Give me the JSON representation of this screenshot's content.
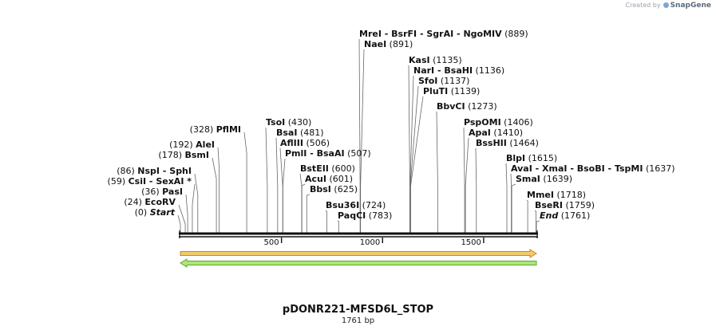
{
  "credit": {
    "prefix": "Created by",
    "brand": "SnapGene"
  },
  "plasmid": {
    "name": "pDONR221-MFSD6L_STOP",
    "length_label": "1761 bp",
    "length": 1761
  },
  "ticks": [
    {
      "value": 500,
      "label": "500"
    },
    {
      "value": 1000,
      "label": "1000"
    },
    {
      "value": 1500,
      "label": "1500"
    }
  ],
  "features": [
    {
      "name": "feature-orange",
      "strand": "forward",
      "start": 1,
      "end": 1761,
      "fill": "#f3c96b",
      "stroke": "#c8872a"
    },
    {
      "name": "feature-green",
      "strand": "reverse",
      "start": 1,
      "end": 1761,
      "fill": "#aee67a",
      "stroke": "#5ea82b"
    }
  ],
  "sites_left": [
    {
      "pos_label": "(0)",
      "pos": 0,
      "names": [
        "Start"
      ],
      "italic": true
    },
    {
      "pos_label": "(24)",
      "pos": 24,
      "names": [
        "EcoRV"
      ]
    },
    {
      "pos_label": "(36)",
      "pos": 36,
      "names": [
        "PasI"
      ]
    },
    {
      "pos_label": "(59)",
      "pos": 59,
      "names": [
        "CsiI",
        "SexAI *"
      ]
    },
    {
      "pos_label": "(86)",
      "pos": 86,
      "names": [
        "NspI",
        "SphI"
      ]
    },
    {
      "pos_label": "(178)",
      "pos": 178,
      "names": [
        "BsmI"
      ]
    },
    {
      "pos_label": "(192)",
      "pos": 192,
      "names": [
        "AleI"
      ]
    },
    {
      "pos_label": "(328)",
      "pos": 328,
      "names": [
        "PflMI"
      ]
    }
  ],
  "sites_right": [
    {
      "names": [
        "TsoI"
      ],
      "pos_label": "(430)",
      "pos": 430
    },
    {
      "names": [
        "BsaI"
      ],
      "pos_label": "(481)",
      "pos": 481
    },
    {
      "names": [
        "AflIII"
      ],
      "pos_label": "(506)",
      "pos": 506
    },
    {
      "names": [
        "PmlI",
        "BsaAI"
      ],
      "pos_label": "(507)",
      "pos": 507
    },
    {
      "names": [
        "BstEII"
      ],
      "pos_label": "(600)",
      "pos": 600
    },
    {
      "names": [
        "AcuI"
      ],
      "pos_label": "(601)",
      "pos": 601
    },
    {
      "names": [
        "BbsI"
      ],
      "pos_label": "(625)",
      "pos": 625
    },
    {
      "names": [
        "Bsu36I"
      ],
      "pos_label": "(724)",
      "pos": 724
    },
    {
      "names": [
        "PaqCI"
      ],
      "pos_label": "(783)",
      "pos": 783
    },
    {
      "names": [
        "MreI",
        "BsrFI",
        "SgrAI",
        "NgoMIV"
      ],
      "pos_label": "(889)",
      "pos": 889
    },
    {
      "names": [
        "NaeI"
      ],
      "pos_label": "(891)",
      "pos": 891
    },
    {
      "names": [
        "KasI"
      ],
      "pos_label": "(1135)",
      "pos": 1135
    },
    {
      "names": [
        "NarI",
        "BsaHI"
      ],
      "pos_label": "(1136)",
      "pos": 1136
    },
    {
      "names": [
        "SfoI"
      ],
      "pos_label": "(1137)",
      "pos": 1137
    },
    {
      "names": [
        "PluTI"
      ],
      "pos_label": "(1139)",
      "pos": 1139
    },
    {
      "names": [
        "BbvCI"
      ],
      "pos_label": "(1273)",
      "pos": 1273
    },
    {
      "names": [
        "PspOMI"
      ],
      "pos_label": "(1406)",
      "pos": 1406
    },
    {
      "names": [
        "ApaI"
      ],
      "pos_label": "(1410)",
      "pos": 1410
    },
    {
      "names": [
        "BssHII"
      ],
      "pos_label": "(1464)",
      "pos": 1464
    },
    {
      "names": [
        "BlpI"
      ],
      "pos_label": "(1615)",
      "pos": 1615
    },
    {
      "names": [
        "AvaI",
        "XmaI",
        "BsoBI",
        "TspMI"
      ],
      "pos_label": "(1637)",
      "pos": 1637
    },
    {
      "names": [
        "SmaI"
      ],
      "pos_label": "(1639)",
      "pos": 1639
    },
    {
      "names": [
        "MmeI"
      ],
      "pos_label": "(1718)",
      "pos": 1718
    },
    {
      "names": [
        "BseRI"
      ],
      "pos_label": "(1759)",
      "pos": 1759
    },
    {
      "names": [
        "End"
      ],
      "pos_label": "(1761)",
      "pos": 1761,
      "italic": true
    }
  ]
}
